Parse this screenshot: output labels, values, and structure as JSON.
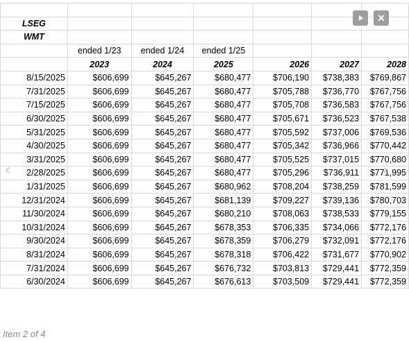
{
  "sheet": {
    "source_label": "LSEG",
    "ticker_label": "WMT",
    "period_labels": [
      "ended 1/23",
      "ended 1/24",
      "ended 1/25"
    ],
    "year_headers": [
      "2023",
      "2024",
      "2025",
      "2026",
      "2027",
      "2028"
    ],
    "rows": [
      [
        "8/15/2025",
        "$606,699",
        "$645,267",
        "$680,477",
        "$706,190",
        "$738,383",
        "$769,867"
      ],
      [
        "7/31/2025",
        "$606,699",
        "$645,267",
        "$680,477",
        "$705,788",
        "$736,770",
        "$767,756"
      ],
      [
        "7/15/2025",
        "$606,699",
        "$645,267",
        "$680,477",
        "$705,708",
        "$736,583",
        "$767,756"
      ],
      [
        "6/30/2025",
        "$606,699",
        "$645,267",
        "$680,477",
        "$705,671",
        "$736,523",
        "$767,538"
      ],
      [
        "5/31/2025",
        "$606,699",
        "$645,267",
        "$680,477",
        "$705,592",
        "$737,006",
        "$769,536"
      ],
      [
        "4/30/2025",
        "$606,699",
        "$645,267",
        "$680,477",
        "$705,342",
        "$736,966",
        "$770,442"
      ],
      [
        "3/31/2025",
        "$606,699",
        "$645,267",
        "$680,477",
        "$705,525",
        "$737,015",
        "$770,680"
      ],
      [
        "2/28/2025",
        "$606,699",
        "$645,267",
        "$680,477",
        "$705,296",
        "$736,911",
        "$771,995"
      ],
      [
        "1/31/2025",
        "$606,699",
        "$645,267",
        "$680,962",
        "$708,204",
        "$738,259",
        "$781,599"
      ],
      [
        "12/31/2024",
        "$606,699",
        "$645,267",
        "$681,139",
        "$709,227",
        "$739,136",
        "$780,703"
      ],
      [
        "11/30/2024",
        "$606,699",
        "$645,267",
        "$680,210",
        "$708,063",
        "$738,533",
        "$779,155"
      ],
      [
        "10/31/2024",
        "$606,699",
        "$645,267",
        "$678,353",
        "$706,335",
        "$734,066",
        "$772,176"
      ],
      [
        "9/30/2024",
        "$606,699",
        "$645,267",
        "$678,359",
        "$706,279",
        "$732,091",
        "$772,176"
      ],
      [
        "8/31/2024",
        "$606,699",
        "$645,267",
        "$678,318",
        "$706,422",
        "$731,677",
        "$770,902"
      ],
      [
        "7/31/2024",
        "$606,699",
        "$645,267",
        "$676,732",
        "$703,813",
        "$729,441",
        "$772,359"
      ],
      [
        "6/30/2024",
        "$606,699",
        "$645,267",
        "$676,613",
        "$703,509",
        "$729,441",
        "$772,359"
      ]
    ]
  },
  "controls": {
    "play_icon": "play-icon",
    "close_icon": "close-icon",
    "close_glyph": "✕",
    "prev_glyph": "‹",
    "next_glyph": "›"
  },
  "caption": "Item 2 of 4",
  "colors": {
    "gridline": "#d9d9d9",
    "control_bg": "#9d9d9d",
    "caption_text": "#8a8a8a"
  }
}
